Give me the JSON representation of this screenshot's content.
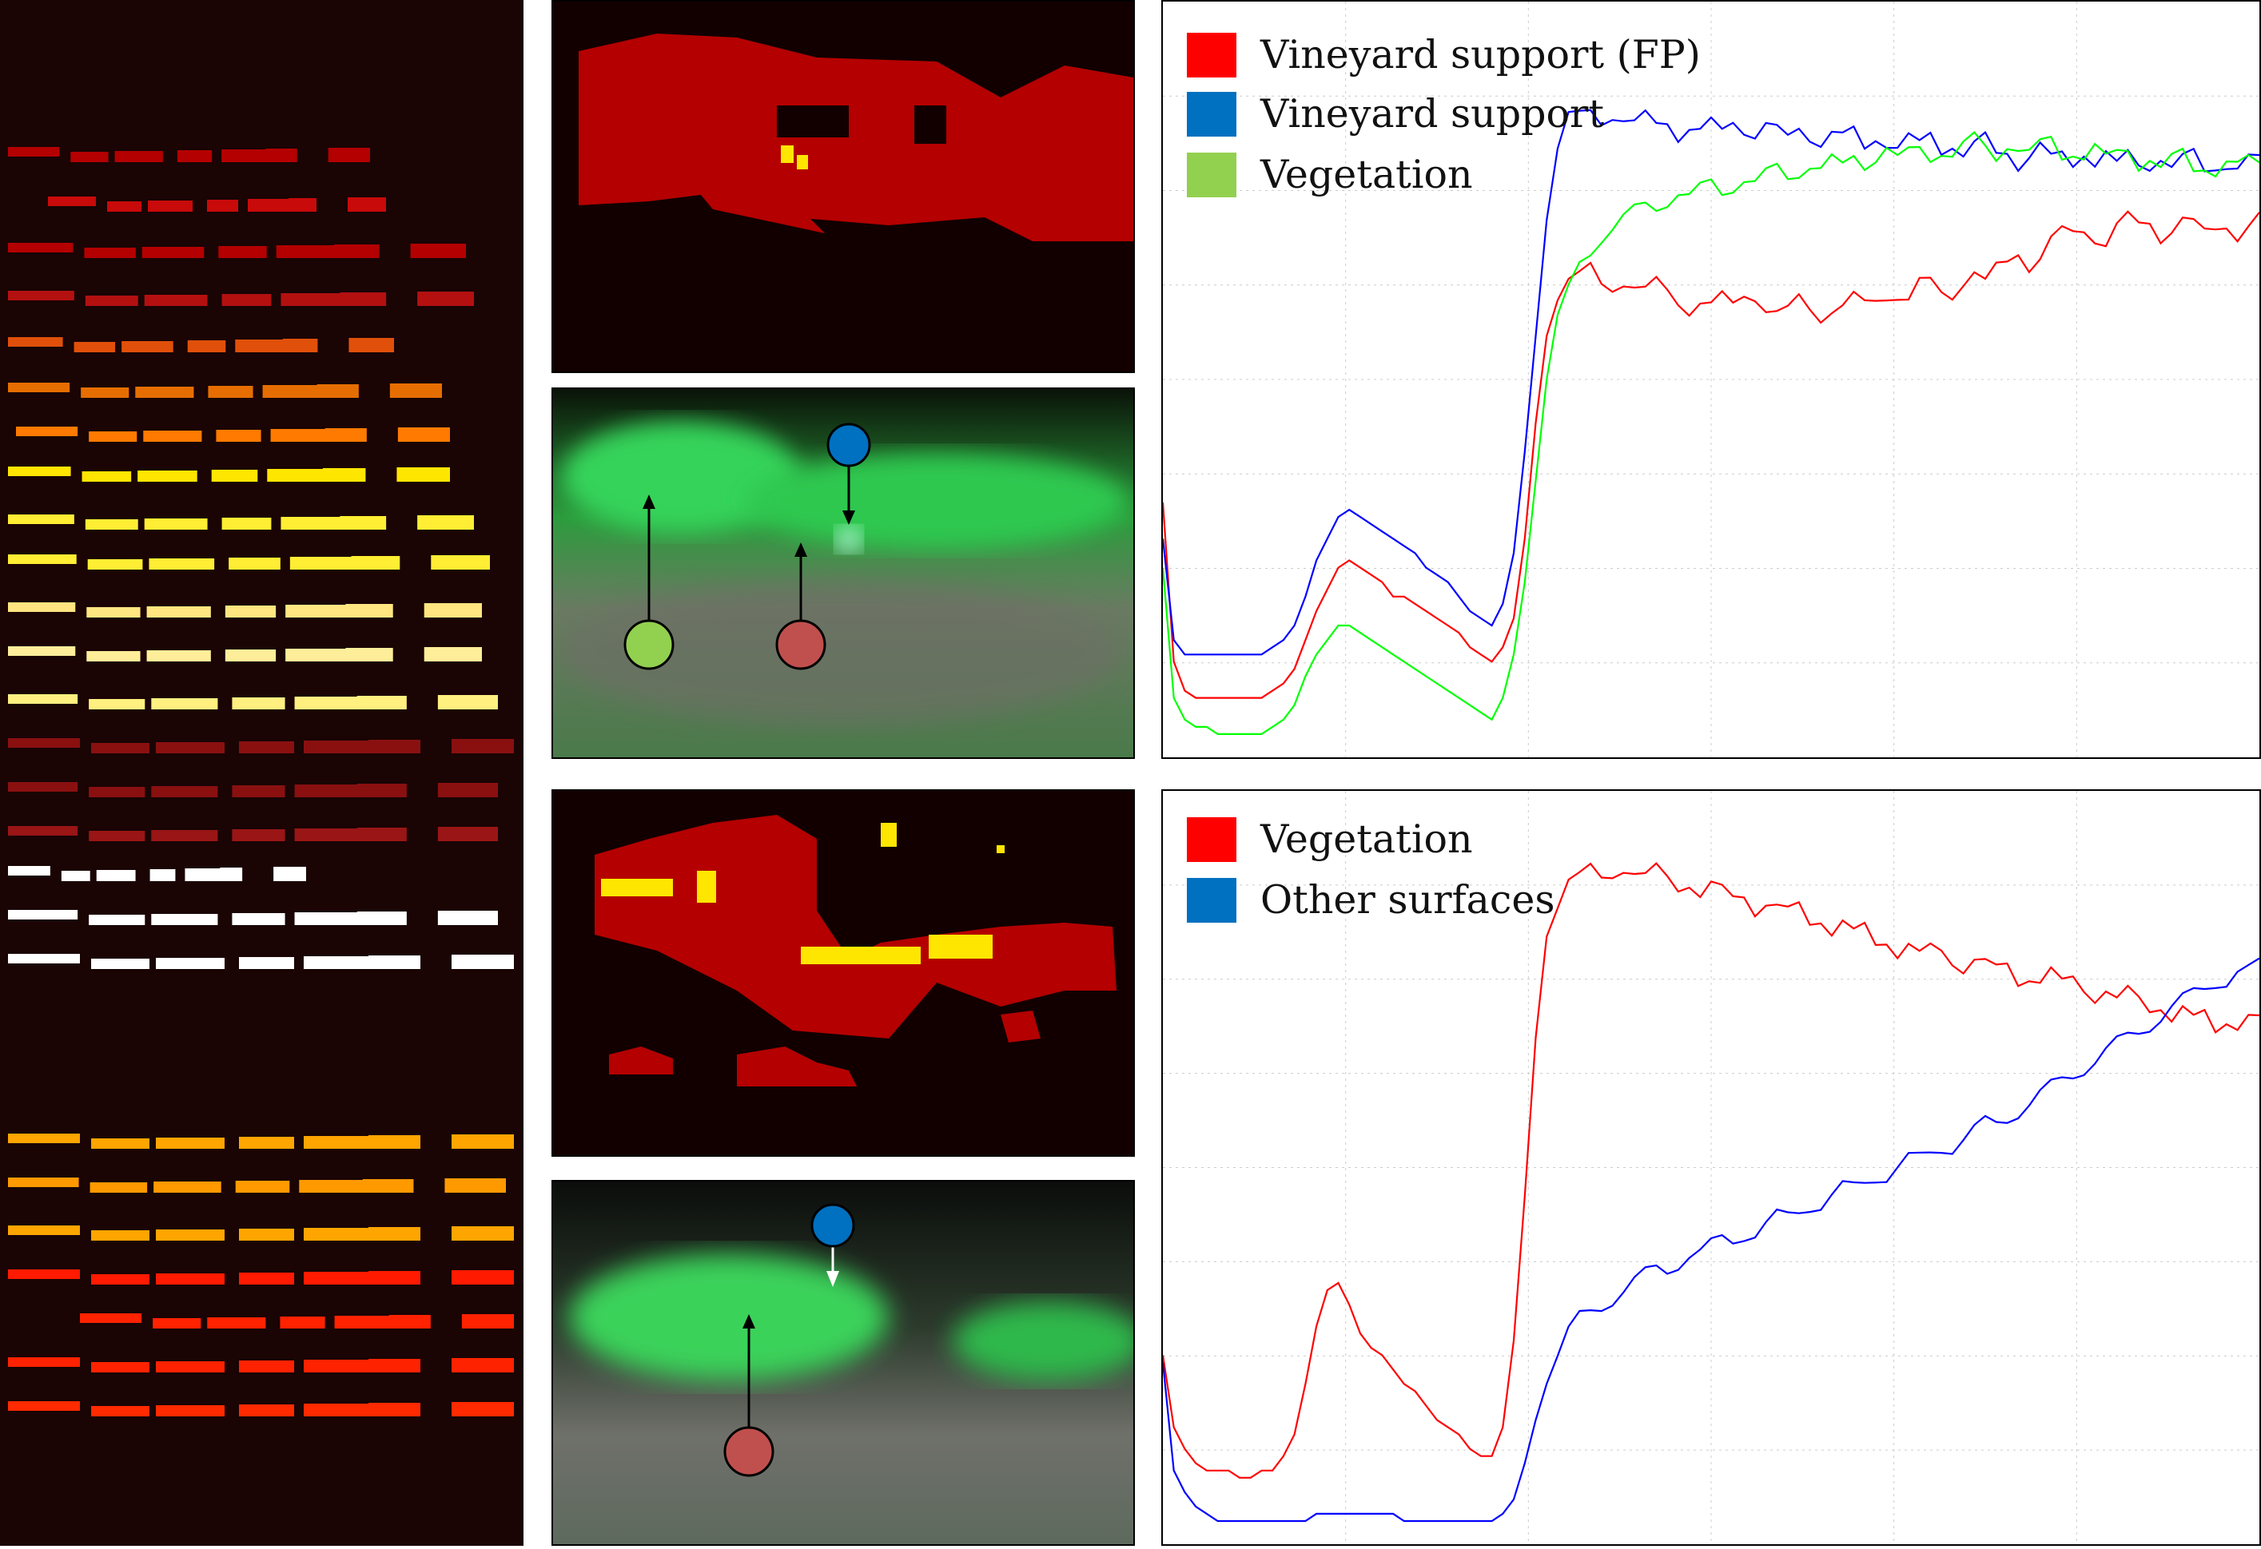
{
  "colors": {
    "background_dark": "#1a0404",
    "class_red": "#b40000",
    "class_yellow": "#ffe600",
    "marker_blue": "#0070c0",
    "marker_green": "#92d050",
    "marker_red": "#c0504d",
    "series_red": "#ff0000",
    "series_blue": "#0000ff",
    "series_green": "#00ff00"
  },
  "chart_data": [
    {
      "type": "line",
      "title": "",
      "xlabel": "",
      "ylabel": "",
      "grid": true,
      "legend_placement": "top-left",
      "x": [
        0,
        10,
        20,
        30,
        40,
        50,
        60,
        70,
        80,
        90,
        100,
        110,
        120,
        130,
        140,
        150,
        160,
        170,
        180,
        190,
        200,
        210,
        220,
        230,
        240,
        250,
        260,
        270,
        280,
        290,
        300,
        310,
        320,
        330,
        340,
        350,
        360,
        370,
        380,
        390,
        400,
        410,
        420,
        430,
        440,
        450,
        460,
        470,
        480,
        490,
        500,
        510,
        520,
        530,
        540,
        550,
        560,
        570,
        580,
        590,
        600,
        610,
        620,
        630,
        640,
        650,
        660,
        670,
        680,
        690,
        700,
        710,
        720,
        730,
        740,
        750,
        760,
        770,
        780,
        790,
        800,
        810,
        820,
        830,
        840,
        850,
        860,
        870,
        880,
        890,
        900,
        910,
        920,
        930,
        940,
        950,
        960,
        970,
        980,
        990,
        1000
      ],
      "ylim": [
        0,
        1
      ],
      "xlim": [
        0,
        1000
      ],
      "series": [
        {
          "name": "Vineyard support (FP)",
          "color": "#ff0000",
          "values": [
            0.33,
            0.11,
            0.07,
            0.06,
            0.06,
            0.06,
            0.06,
            0.06,
            0.06,
            0.06,
            0.07,
            0.08,
            0.1,
            0.14,
            0.18,
            0.21,
            0.24,
            0.25,
            0.24,
            0.23,
            0.22,
            0.2,
            0.2,
            0.19,
            0.18,
            0.17,
            0.16,
            0.15,
            0.13,
            0.12,
            0.11,
            0.13,
            0.17,
            0.28,
            0.44,
            0.56,
            0.62,
            0.64,
            0.64,
            0.65,
            0.63,
            0.63,
            0.64,
            0.63,
            0.62,
            0.63,
            0.62,
            0.61,
            0.6,
            0.61,
            0.6,
            0.61,
            0.6,
            0.62,
            0.62,
            0.6,
            0.59,
            0.59,
            0.61,
            0.6,
            0.59,
            0.6,
            0.6,
            0.61,
            0.6,
            0.61,
            0.62,
            0.62,
            0.61,
            0.63,
            0.63,
            0.62,
            0.62,
            0.64,
            0.65,
            0.63,
            0.65,
            0.66,
            0.68,
            0.66,
            0.67,
            0.69,
            0.7,
            0.7,
            0.71,
            0.7,
            0.69,
            0.71,
            0.72,
            0.71,
            0.72,
            0.7,
            0.71,
            0.72,
            0.71,
            0.7,
            0.71,
            0.72,
            0.7,
            0.71,
            0.72
          ]
        },
        {
          "name": "Vineyard support",
          "color": "#0000ff",
          "values": [
            0.28,
            0.14,
            0.12,
            0.12,
            0.12,
            0.12,
            0.12,
            0.12,
            0.12,
            0.12,
            0.13,
            0.14,
            0.16,
            0.2,
            0.25,
            0.28,
            0.31,
            0.32,
            0.31,
            0.3,
            0.29,
            0.28,
            0.27,
            0.26,
            0.24,
            0.23,
            0.22,
            0.2,
            0.18,
            0.17,
            0.16,
            0.19,
            0.26,
            0.4,
            0.56,
            0.72,
            0.82,
            0.86,
            0.86,
            0.87,
            0.86,
            0.87,
            0.86,
            0.85,
            0.86,
            0.85,
            0.86,
            0.84,
            0.85,
            0.84,
            0.85,
            0.84,
            0.86,
            0.85,
            0.84,
            0.85,
            0.84,
            0.83,
            0.85,
            0.84,
            0.83,
            0.84,
            0.83,
            0.84,
            0.82,
            0.84,
            0.83,
            0.82,
            0.83,
            0.82,
            0.84,
            0.82,
            0.83,
            0.81,
            0.82,
            0.83,
            0.81,
            0.82,
            0.8,
            0.81,
            0.82,
            0.8,
            0.81,
            0.8,
            0.82,
            0.8,
            0.81,
            0.79,
            0.81,
            0.8,
            0.8,
            0.81,
            0.79,
            0.8,
            0.81,
            0.79,
            0.8,
            0.8,
            0.79,
            0.8,
            0.8
          ]
        },
        {
          "name": "Vegetation",
          "color": "#00ff00",
          "values": [
            0.24,
            0.06,
            0.03,
            0.02,
            0.02,
            0.01,
            0.01,
            0.01,
            0.01,
            0.01,
            0.02,
            0.03,
            0.05,
            0.09,
            0.12,
            0.14,
            0.16,
            0.16,
            0.15,
            0.14,
            0.13,
            0.12,
            0.11,
            0.1,
            0.09,
            0.08,
            0.07,
            0.06,
            0.05,
            0.04,
            0.03,
            0.06,
            0.12,
            0.22,
            0.36,
            0.5,
            0.58,
            0.62,
            0.66,
            0.68,
            0.7,
            0.71,
            0.72,
            0.73,
            0.74,
            0.74,
            0.75,
            0.76,
            0.75,
            0.76,
            0.77,
            0.76,
            0.77,
            0.78,
            0.77,
            0.78,
            0.79,
            0.78,
            0.79,
            0.8,
            0.79,
            0.8,
            0.79,
            0.81,
            0.8,
            0.81,
            0.82,
            0.8,
            0.81,
            0.82,
            0.81,
            0.82,
            0.81,
            0.82,
            0.83,
            0.82,
            0.81,
            0.83,
            0.82,
            0.81,
            0.82,
            0.83,
            0.81,
            0.82,
            0.81,
            0.82,
            0.8,
            0.81,
            0.82,
            0.8,
            0.81,
            0.79,
            0.8,
            0.81,
            0.79,
            0.8,
            0.79,
            0.8,
            0.79,
            0.8,
            0.8
          ]
        }
      ]
    },
    {
      "type": "line",
      "title": "",
      "xlabel": "",
      "ylabel": "",
      "grid": true,
      "legend_placement": "top-left",
      "x": [
        0,
        10,
        20,
        30,
        40,
        50,
        60,
        70,
        80,
        90,
        100,
        110,
        120,
        130,
        140,
        150,
        160,
        170,
        180,
        190,
        200,
        210,
        220,
        230,
        240,
        250,
        260,
        270,
        280,
        290,
        300,
        310,
        320,
        330,
        340,
        350,
        360,
        370,
        380,
        390,
        400,
        410,
        420,
        430,
        440,
        450,
        460,
        470,
        480,
        490,
        500,
        510,
        520,
        530,
        540,
        550,
        560,
        570,
        580,
        590,
        600,
        610,
        620,
        630,
        640,
        650,
        660,
        670,
        680,
        690,
        700,
        710,
        720,
        730,
        740,
        750,
        760,
        770,
        780,
        790,
        800,
        810,
        820,
        830,
        840,
        850,
        860,
        870,
        880,
        890,
        900,
        910,
        920,
        930,
        940,
        950,
        960,
        970,
        980,
        990,
        1000
      ],
      "ylim": [
        0,
        1
      ],
      "xlim": [
        0,
        1000
      ],
      "series": [
        {
          "name": "Vegetation",
          "color": "#ff0000",
          "values": [
            0.24,
            0.14,
            0.11,
            0.09,
            0.08,
            0.08,
            0.08,
            0.07,
            0.07,
            0.08,
            0.08,
            0.1,
            0.13,
            0.2,
            0.28,
            0.33,
            0.34,
            0.31,
            0.27,
            0.25,
            0.24,
            0.22,
            0.2,
            0.19,
            0.17,
            0.15,
            0.14,
            0.13,
            0.11,
            0.1,
            0.1,
            0.14,
            0.26,
            0.46,
            0.68,
            0.82,
            0.87,
            0.9,
            0.9,
            0.91,
            0.9,
            0.91,
            0.92,
            0.91,
            0.9,
            0.91,
            0.9,
            0.89,
            0.9,
            0.88,
            0.89,
            0.88,
            0.87,
            0.88,
            0.86,
            0.87,
            0.86,
            0.85,
            0.86,
            0.84,
            0.85,
            0.83,
            0.84,
            0.82,
            0.83,
            0.81,
            0.82,
            0.8,
            0.81,
            0.79,
            0.8,
            0.8,
            0.79,
            0.78,
            0.79,
            0.78,
            0.77,
            0.78,
            0.76,
            0.77,
            0.76,
            0.77,
            0.75,
            0.76,
            0.75,
            0.74,
            0.75,
            0.73,
            0.74,
            0.73,
            0.72,
            0.73,
            0.71,
            0.72,
            0.7,
            0.71,
            0.69,
            0.71,
            0.7,
            0.71,
            0.7
          ]
        },
        {
          "name": "Other surfaces",
          "color": "#0000ff",
          "values": [
            0.23,
            0.08,
            0.05,
            0.03,
            0.02,
            0.01,
            0.01,
            0.01,
            0.01,
            0.01,
            0.01,
            0.01,
            0.01,
            0.01,
            0.02,
            0.02,
            0.02,
            0.02,
            0.02,
            0.02,
            0.02,
            0.02,
            0.01,
            0.01,
            0.01,
            0.01,
            0.01,
            0.01,
            0.01,
            0.01,
            0.01,
            0.02,
            0.04,
            0.09,
            0.15,
            0.2,
            0.24,
            0.27,
            0.29,
            0.3,
            0.31,
            0.32,
            0.33,
            0.34,
            0.35,
            0.36,
            0.36,
            0.37,
            0.38,
            0.38,
            0.39,
            0.4,
            0.4,
            0.41,
            0.41,
            0.42,
            0.43,
            0.43,
            0.44,
            0.45,
            0.45,
            0.46,
            0.47,
            0.47,
            0.48,
            0.49,
            0.49,
            0.5,
            0.51,
            0.51,
            0.52,
            0.53,
            0.53,
            0.54,
            0.55,
            0.56,
            0.56,
            0.57,
            0.58,
            0.59,
            0.6,
            0.61,
            0.62,
            0.63,
            0.64,
            0.65,
            0.66,
            0.67,
            0.68,
            0.69,
            0.7,
            0.71,
            0.72,
            0.73,
            0.74,
            0.75,
            0.76,
            0.76,
            0.77,
            0.77,
            0.78
          ]
        }
      ]
    }
  ]
}
